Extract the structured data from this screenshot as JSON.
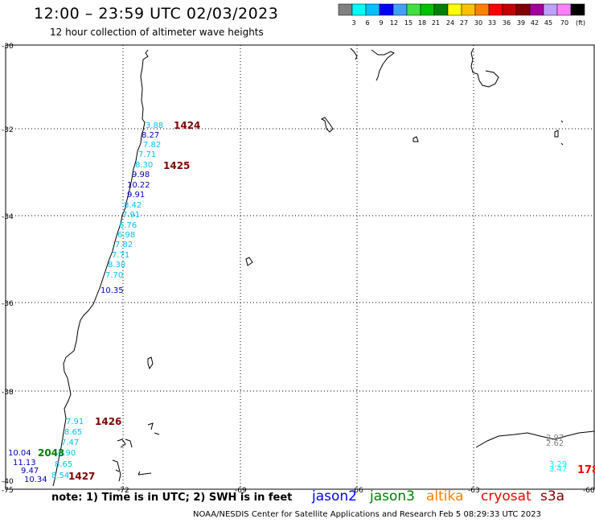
{
  "header": {
    "title": "12:00 – 23:59 UTC 02/03/2023",
    "subtitle": "12 hour collection of altimeter wave heights"
  },
  "legend": {
    "colors": [
      "#808080",
      "#00ffff",
      "#00c0ff",
      "#0000ff",
      "#40a0ff",
      "#40e040",
      "#00c000",
      "#008000",
      "#ffff00",
      "#ffc000",
      "#ff8000",
      "#ff0000",
      "#c00000",
      "#800000",
      "#a000a0",
      "#c0a0ff",
      "#ff80ff",
      "#000000"
    ],
    "labels": [
      "3",
      "6",
      "9",
      "12",
      "15",
      "18",
      "21",
      "24",
      "27",
      "30",
      "33",
      "36",
      "39",
      "42",
      "45",
      "70",
      "(ft)"
    ]
  },
  "axes": {
    "lat_labels": [
      "-30",
      "-32",
      "-34",
      "-36",
      "-38",
      "-40"
    ],
    "lon_labels": [
      "-75",
      "-72",
      "-69",
      "-66",
      "-63",
      "-60"
    ]
  },
  "pass_labels": [
    {
      "text": "1424",
      "color": "#800000"
    },
    {
      "text": "1425",
      "color": "#800000"
    },
    {
      "text": "1426",
      "color": "#800000"
    },
    {
      "text": "1427",
      "color": "#800000"
    },
    {
      "text": "2043",
      "color": "#008000"
    },
    {
      "text": "178",
      "color": "#ff0000"
    }
  ],
  "wave_values": [
    {
      "text": "3.88",
      "color": "#00c0ff"
    },
    {
      "text": "8.27",
      "color": "#0000c0"
    },
    {
      "text": "7.82",
      "color": "#00c0ff"
    },
    {
      "text": "7.71",
      "color": "#00c0ff"
    },
    {
      "text": "8.30",
      "color": "#00c0ff"
    },
    {
      "text": "9.98",
      "color": "#0000c0"
    },
    {
      "text": "10.22",
      "color": "#0000c0"
    },
    {
      "text": "9.91",
      "color": "#0000c0"
    },
    {
      "text": "8.42",
      "color": "#00c0ff"
    },
    {
      "text": "7.91",
      "color": "#00c0ff"
    },
    {
      "text": "6.76",
      "color": "#00c0ff"
    },
    {
      "text": "6.98",
      "color": "#00c0ff"
    },
    {
      "text": "7.82",
      "color": "#00c0ff"
    },
    {
      "text": "7.71",
      "color": "#00c0ff"
    },
    {
      "text": "8.30",
      "color": "#00c0ff"
    },
    {
      "text": "7.70",
      "color": "#00c0ff"
    },
    {
      "text": "10.35",
      "color": "#0000c0"
    },
    {
      "text": "7.91",
      "color": "#00c0ff"
    },
    {
      "text": "8.65",
      "color": "#00c0ff"
    },
    {
      "text": "7.47",
      "color": "#00c0ff"
    },
    {
      "text": "6.90",
      "color": "#00c0ff"
    },
    {
      "text": "8.65",
      "color": "#00c0ff"
    },
    {
      "text": "8.54",
      "color": "#00c0ff"
    },
    {
      "text": "10.04",
      "color": "#0000c0"
    },
    {
      "text": "11.13",
      "color": "#0000c0"
    },
    {
      "text": "9.47",
      "color": "#0000c0"
    },
    {
      "text": "10.34",
      "color": "#0000c0"
    },
    {
      "text": "2.97",
      "color": "#808080"
    },
    {
      "text": "2.62",
      "color": "#808080"
    },
    {
      "text": "3.29",
      "color": "#00ffff"
    },
    {
      "text": "3.47",
      "color": "#00ffff"
    }
  ],
  "note": "note: 1) Time is in UTC; 2) SWH is in feet",
  "satellites": [
    {
      "name": "jason2",
      "color": "#0000ff"
    },
    {
      "name": "jason3",
      "color": "#008000"
    },
    {
      "name": "altika",
      "color": "#ff8000"
    },
    {
      "name": "cryosat",
      "color": "#ff0000"
    },
    {
      "name": "s3a",
      "color": "#800000"
    }
  ],
  "footer": "NOAA/NESDIS Center for Satellite Applications and Research    Feb  5 08:29:33 UTC 2023"
}
